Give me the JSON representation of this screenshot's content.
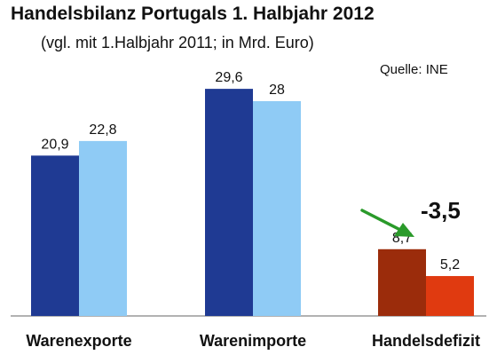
{
  "header": {
    "title": "Handelsbilanz Portugals 1. Halbjahr 2012",
    "subtitle": "(vgl. mit 1.Halbjahr 2011; in Mrd. Euro)",
    "source": "Quelle: INE"
  },
  "chart_data": {
    "type": "bar",
    "title": "Handelsbilanz Portugals 1. Halbjahr 2012",
    "subtitle": "(vgl. mit 1.Halbjahr 2011; in Mrd. Euro)",
    "source": "Quelle: INE",
    "categories": [
      "Warenexporte",
      "Warenimporte",
      "Handelsdefizit"
    ],
    "series": [
      {
        "values": [
          20.9,
          29.6,
          8.7
        ],
        "labels": [
          "20,9",
          "29,6",
          "8,7"
        ]
      },
      {
        "values": [
          22.8,
          28,
          5.2
        ],
        "labels": [
          "22,8",
          "28",
          "5,2"
        ]
      }
    ],
    "colors": {
      "first": [
        "#1f3a93",
        "#1f3a93",
        "#9b2c0b"
      ],
      "second": [
        "#8fcbf5",
        "#8fcbf5",
        "#e03a10"
      ],
      "annotation_arrow": "#2a9a2a"
    },
    "annotation": {
      "text": "-3,5",
      "category": "Handelsdefizit"
    },
    "ylim": [
      0,
      31
    ],
    "grid": false,
    "legend": "none"
  }
}
